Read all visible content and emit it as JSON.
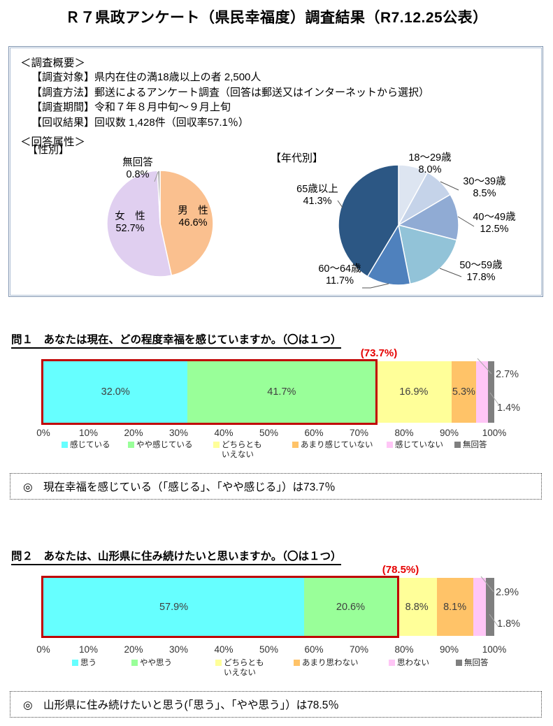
{
  "page_title": "Ｒ７県政アンケート（県民幸福度）調査結果（R7.12.25公表）",
  "overview": {
    "heading": "＜調査概要＞",
    "lines": [
      "【調査対象】県内在住の満18歳以上の者 2,500人",
      "【調査方法】郵送によるアンケート調査（回答は郵送又はインターネットから選択）",
      "【調査期間】令和７年８月中旬～９月上旬",
      "【回収結果】回収数 1,428件（回収率57.1％）"
    ]
  },
  "attributes": {
    "heading": "＜回答属性＞",
    "gender_label": "【性別】",
    "age_label": "【年代別】"
  },
  "chart_data": [
    {
      "id": "gender-pie",
      "type": "pie",
      "title": "性別",
      "start_angle_deg": -90,
      "direction": "clockwise",
      "slices": [
        {
          "label": "男　性",
          "value": 46.6,
          "display": "46.6%",
          "color": "#FAC08F"
        },
        {
          "label": "女　性",
          "value": 52.7,
          "display": "52.7%",
          "color": "#E0CFF0"
        },
        {
          "label": "無回答",
          "value": 0.8,
          "display": "0.8%",
          "color": "#ABABAB"
        }
      ]
    },
    {
      "id": "age-pie",
      "type": "pie",
      "title": "年代別",
      "start_angle_deg": -90,
      "direction": "clockwise",
      "slices": [
        {
          "label": "18～29歳",
          "value": 8.0,
          "display": "8.0%",
          "color": "#DDE5F1"
        },
        {
          "label": "30～39歳",
          "value": 8.5,
          "display": "8.5%",
          "color": "#C5D3E9"
        },
        {
          "label": "40～49歳",
          "value": 12.5,
          "display": "12.5%",
          "color": "#90ABD4"
        },
        {
          "label": "50～59歳",
          "value": 17.8,
          "display": "17.8%",
          "color": "#92C3D8"
        },
        {
          "label": "60～64歳",
          "value": 11.7,
          "display": "11.7%",
          "color": "#4F81BD"
        },
        {
          "label": "65歳以上",
          "value": 41.3,
          "display": "41.3%",
          "color": "#2C5784"
        }
      ]
    },
    {
      "id": "q1-bar",
      "type": "bar",
      "stacked": true,
      "orientation": "horizontal",
      "question": "問１　あなたは現在、どの程度幸福を感じていますか。（〇は１つ）",
      "group_label": "(73.7%)",
      "group_total": 73.7,
      "xlim": [
        0,
        100
      ],
      "axis_ticks": [
        "0%",
        "10%",
        "20%",
        "30%",
        "40%",
        "50%",
        "60%",
        "70%",
        "80%",
        "90%",
        "100%"
      ],
      "segments": [
        {
          "label": "感じている",
          "value": 32.0,
          "display": "32.0%",
          "color": "#66FFFF",
          "label_inside": true
        },
        {
          "label": "やや感じている",
          "value": 41.7,
          "display": "41.7%",
          "color": "#99FF99",
          "label_inside": true
        },
        {
          "label": "どちらともいえない",
          "value": 16.9,
          "display": "16.9%",
          "color": "#FFFF99",
          "label_inside": true
        },
        {
          "label": "あまり感じていない",
          "value": 5.3,
          "display": "5.3%",
          "color": "#FFC368",
          "label_inside": true
        },
        {
          "label": "感じていない",
          "value": 2.7,
          "display": "2.7%",
          "color": "#FFC6F6",
          "label_inside": false
        },
        {
          "label": "無回答",
          "value": 1.4,
          "display": "1.4%",
          "color": "#7F7F7F",
          "label_inside": false
        }
      ],
      "legend": [
        {
          "label": "感じている",
          "color": "#66FFFF"
        },
        {
          "label": "やや感じている",
          "color": "#99FF99"
        },
        {
          "label": "どちらとも\nいえない",
          "color": "#FFFF99"
        },
        {
          "label": "あまり感じていない",
          "color": "#FFC368"
        },
        {
          "label": "感じていない",
          "color": "#FFC6F6"
        },
        {
          "label": "無回答",
          "color": "#7F7F7F"
        }
      ]
    },
    {
      "id": "q2-bar",
      "type": "bar",
      "stacked": true,
      "orientation": "horizontal",
      "question": "問２　あなたは、山形県に住み続けたいと思いますか。（〇は１つ）",
      "group_label": "(78.5%)",
      "group_total": 78.5,
      "xlim": [
        0,
        100
      ],
      "axis_ticks": [
        "0%",
        "10%",
        "20%",
        "30%",
        "40%",
        "50%",
        "60%",
        "70%",
        "80%",
        "90%",
        "100%"
      ],
      "segments": [
        {
          "label": "思う",
          "value": 57.9,
          "display": "57.9%",
          "color": "#66FFFF",
          "label_inside": true
        },
        {
          "label": "やや思う",
          "value": 20.6,
          "display": "20.6%",
          "color": "#99FF99",
          "label_inside": true
        },
        {
          "label": "どちらともいえない",
          "value": 8.8,
          "display": "8.8%",
          "color": "#FFFF99",
          "label_inside": true
        },
        {
          "label": "あまり思わない",
          "value": 8.1,
          "display": "8.1%",
          "color": "#FFC368",
          "label_inside": true
        },
        {
          "label": "思わない",
          "value": 2.9,
          "display": "2.9%",
          "color": "#FFC6F6",
          "label_inside": false
        },
        {
          "label": "無回答",
          "value": 1.8,
          "display": "1.8%",
          "color": "#7F7F7F",
          "label_inside": false
        }
      ],
      "legend": [
        {
          "label": "思う",
          "color": "#66FFFF"
        },
        {
          "label": "やや思う",
          "color": "#99FF99"
        },
        {
          "label": "どちらとも\nいえない",
          "color": "#FFFF99"
        },
        {
          "label": "あまり思わない",
          "color": "#FFC368"
        },
        {
          "label": "思わない",
          "color": "#FFC6F6"
        },
        {
          "label": "無回答",
          "color": "#7F7F7F"
        }
      ]
    }
  ],
  "notes": [
    "◎　現在幸福を感じている（「感じる」、「やや感じる」）は73.7％",
    "◎　山形県に住み続けたいと思う(「思う」、「やや思う」）は78.5％"
  ],
  "colors": {
    "accent_red": "#C00000",
    "box_border_blue": "#7F94B0"
  }
}
